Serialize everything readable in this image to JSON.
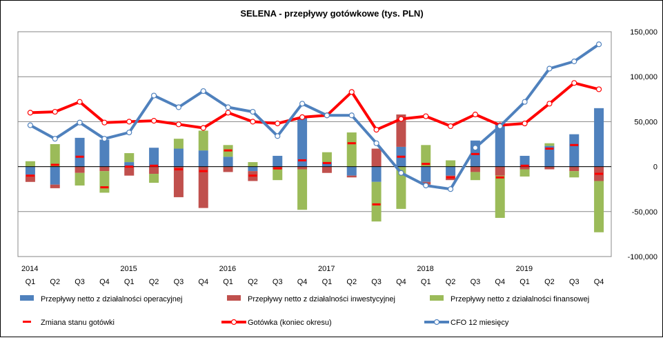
{
  "chart_data": {
    "type": "bar",
    "title": "SELENA - przepływy gotówkowe (tys. PLN)",
    "years": [
      {
        "label": "2014",
        "quarter_index": 0
      },
      {
        "label": "2015",
        "quarter_index": 4
      },
      {
        "label": "2016",
        "quarter_index": 8
      },
      {
        "label": "2017",
        "quarter_index": 12
      },
      {
        "label": "2018",
        "quarter_index": 16
      },
      {
        "label": "2019",
        "quarter_index": 20
      }
    ],
    "categories": [
      "Q1",
      "Q2",
      "Q3",
      "Q4",
      "Q1",
      "Q2",
      "Q3",
      "Q4",
      "Q1",
      "Q2",
      "Q3",
      "Q4",
      "Q1",
      "Q2",
      "Q3",
      "Q4",
      "Q1",
      "Q2",
      "Q3",
      "Q4",
      "Q1",
      "Q2",
      "Q3",
      "Q4"
    ],
    "ylim": [
      -100000,
      150000
    ],
    "yticks": [
      -100000,
      -50000,
      0,
      50000,
      100000,
      150000
    ],
    "ytick_labels": [
      "-100,000",
      "-50,000",
      "0",
      "50,000",
      "100,000",
      "150,000"
    ],
    "grid": true,
    "legend_position": "bottom",
    "series": [
      {
        "name": "Przepływy netto z działalności operacyjnej",
        "kind": "stacked-bar",
        "color": "#4F81BD",
        "values": [
          -9000,
          -20000,
          32000,
          30000,
          5000,
          21000,
          20000,
          18000,
          11000,
          -5000,
          12000,
          55000,
          5000,
          -10000,
          -17000,
          22000,
          -17000,
          -10000,
          29000,
          48000,
          12000,
          23000,
          36000,
          65000
        ]
      },
      {
        "name": "Przepływy netto z działalności inwestycyjnej",
        "kind": "stacked-bar",
        "color": "#C0504D",
        "values": [
          -8000,
          -4000,
          -7000,
          -5000,
          -10000,
          -8000,
          -34000,
          -46000,
          -6000,
          -11000,
          -3000,
          -3000,
          -7000,
          -2000,
          20000,
          36000,
          -3000,
          -5000,
          -6000,
          -10000,
          -3000,
          -3000,
          -5000,
          -16000
        ]
      },
      {
        "name": "Przepływy netto z działalności finansowej",
        "kind": "stacked-bar",
        "color": "#9BBB59",
        "values": [
          6000,
          25000,
          -14000,
          -24000,
          10000,
          -10000,
          11000,
          22000,
          13000,
          5000,
          -12000,
          -45000,
          11000,
          38000,
          -44000,
          -47000,
          24000,
          7000,
          -9000,
          -47000,
          -8000,
          3000,
          -7000,
          -57000
        ]
      },
      {
        "name": "Zmiana stanu gotówki",
        "kind": "marker",
        "color": "#FF0000",
        "values": [
          -10000,
          2000,
          11000,
          -23000,
          0,
          1000,
          -3000,
          -5000,
          18000,
          -10000,
          -2000,
          7000,
          4000,
          26000,
          -42000,
          11000,
          3000,
          -12000,
          14000,
          -12000,
          1000,
          20000,
          24000,
          -8000
        ]
      },
      {
        "name": "Gotówka (koniec okresu)",
        "kind": "line",
        "color": "#FF0000",
        "values": [
          60000,
          61000,
          72000,
          49000,
          50000,
          51000,
          47000,
          43000,
          60000,
          50000,
          48000,
          55000,
          57000,
          83000,
          41000,
          53000,
          56000,
          45000,
          58000,
          46000,
          48000,
          70000,
          93000,
          86000
        ]
      },
      {
        "name": "CFO 12 miesięcy",
        "kind": "line",
        "color": "#4F81BD",
        "values": [
          46000,
          31000,
          49000,
          31000,
          38000,
          79000,
          66000,
          84000,
          66000,
          61000,
          34000,
          70000,
          57000,
          57000,
          26000,
          -7000,
          -21000,
          -25000,
          21000,
          45000,
          72000,
          109000,
          117000,
          136000
        ]
      }
    ]
  }
}
